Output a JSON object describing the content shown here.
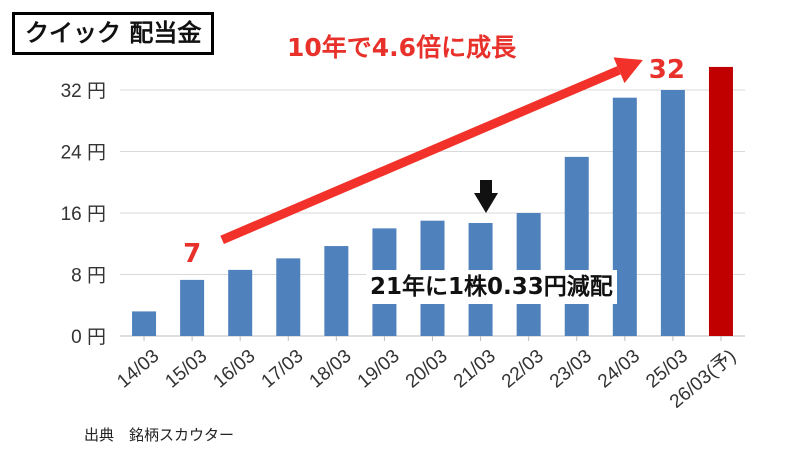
{
  "title": "クイック 配当金",
  "headline": "10年で4.6倍に成長",
  "source": "出典　銘柄スカウター",
  "cut_annotation": "21年に1株0.33円減配",
  "chart_data": {
    "type": "bar",
    "categories": [
      "14/03",
      "15/03",
      "16/03",
      "17/03",
      "18/03",
      "19/03",
      "20/03",
      "21/03",
      "22/03",
      "23/03",
      "24/03",
      "25/03",
      "26/03(予)"
    ],
    "values": [
      3.2,
      7.3,
      8.6,
      10.1,
      11.7,
      14.0,
      15.0,
      14.7,
      16.0,
      23.3,
      31.0,
      32.0,
      35.0
    ],
    "forecast_index": 12,
    "ylim": [
      0,
      36
    ],
    "yticks": [
      0,
      8,
      16,
      24,
      32
    ],
    "ytick_labels": [
      "0 円",
      "8 円",
      "16 円",
      "24 円",
      "32 円"
    ],
    "start_label": "7",
    "end_label": "32",
    "colors": {
      "bar": "#4f81bd",
      "forecast": "#c00000",
      "arrow": "#f2322a"
    }
  }
}
